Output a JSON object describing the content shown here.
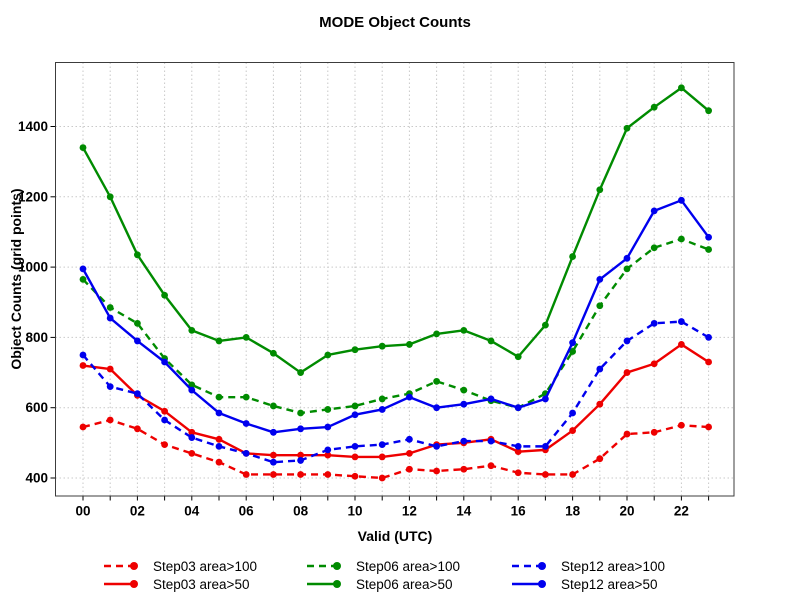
{
  "title": "MODE Object Counts",
  "x_axis": {
    "label": "Valid (UTC)",
    "tick_labels": [
      "00",
      "02",
      "04",
      "06",
      "08",
      "10",
      "12",
      "14",
      "16",
      "18",
      "20",
      "22"
    ]
  },
  "y_axis": {
    "label": "Object Counts (grid points)",
    "tick_labels": [
      "400",
      "600",
      "800",
      "1000",
      "1200",
      "1400"
    ],
    "tick_values": [
      400,
      600,
      800,
      1000,
      1200,
      1400
    ]
  },
  "colors": {
    "red": "#EE0000",
    "green": "#008B00",
    "blue": "#0000EE",
    "grid": "#C9C9C9",
    "frame": "#3C3C3C",
    "text": "#000000"
  },
  "chart_data": {
    "type": "line",
    "x": [
      0,
      1,
      2,
      3,
      4,
      5,
      6,
      7,
      8,
      9,
      10,
      11,
      12,
      13,
      14,
      15,
      16,
      17,
      18,
      19,
      20,
      21,
      22,
      23
    ],
    "xlabel": "Valid (UTC)",
    "ylabel": "Object Counts (grid points)",
    "ylim": [
      349,
      1581
    ],
    "grid": true,
    "legend_position": "bottom",
    "series": [
      {
        "name": "Step03 area>100",
        "color": "red",
        "style": "dashed",
        "values": [
          545,
          565,
          540,
          495,
          470,
          445,
          410,
          410,
          410,
          410,
          405,
          400,
          425,
          420,
          425,
          435,
          415,
          410,
          410,
          455,
          525,
          530,
          550,
          545
        ]
      },
      {
        "name": "Step03 area>50",
        "color": "red",
        "style": "solid",
        "values": [
          720,
          710,
          635,
          590,
          530,
          510,
          470,
          465,
          465,
          465,
          460,
          460,
          470,
          495,
          500,
          510,
          475,
          480,
          535,
          610,
          700,
          725,
          780,
          730
        ]
      },
      {
        "name": "Step06 area>100",
        "color": "green",
        "style": "dashed",
        "values": [
          965,
          885,
          840,
          740,
          665,
          630,
          630,
          605,
          585,
          595,
          605,
          625,
          640,
          675,
          650,
          620,
          600,
          640,
          760,
          890,
          995,
          1055,
          1080,
          1050
        ]
      },
      {
        "name": "Step06 area>50",
        "color": "green",
        "style": "solid",
        "values": [
          1340,
          1200,
          1035,
          920,
          820,
          790,
          800,
          755,
          700,
          750,
          765,
          775,
          780,
          810,
          820,
          790,
          745,
          835,
          1030,
          1220,
          1395,
          1455,
          1510,
          1445
        ]
      },
      {
        "name": "Step12 area>100",
        "color": "blue",
        "style": "dashed",
        "values": [
          750,
          660,
          640,
          565,
          515,
          490,
          470,
          445,
          450,
          480,
          490,
          495,
          510,
          490,
          505,
          505,
          490,
          490,
          585,
          710,
          790,
          840,
          845,
          800
        ]
      },
      {
        "name": "Step12 area>50",
        "color": "blue",
        "style": "solid",
        "values": [
          995,
          855,
          790,
          730,
          650,
          585,
          555,
          530,
          540,
          545,
          580,
          595,
          630,
          600,
          610,
          625,
          600,
          625,
          785,
          965,
          1025,
          1160,
          1190,
          1085
        ]
      }
    ],
    "legend_rows": [
      [
        "Step03 area>100",
        "Step06 area>100",
        "Step12 area>100"
      ],
      [
        "Step03 area>50",
        "Step06 area>50",
        "Step12 area>50"
      ]
    ]
  }
}
